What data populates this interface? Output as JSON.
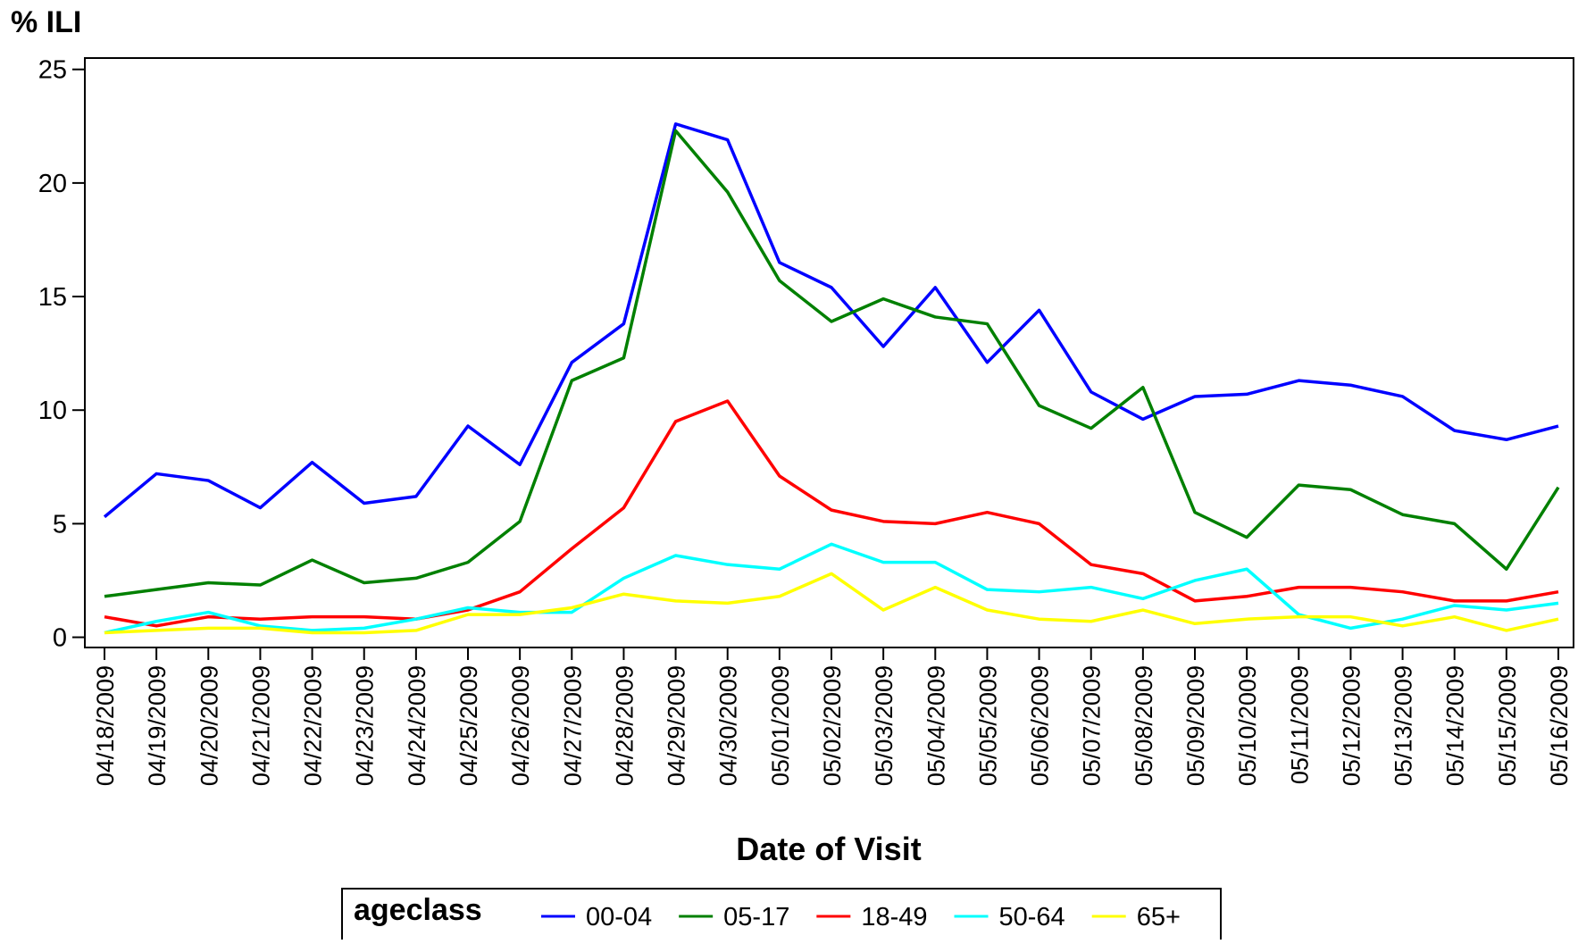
{
  "chart_data": {
    "type": "line",
    "title": "% ILI",
    "x_label": "Date of Visit",
    "legend_title": "ageclass",
    "categories": [
      "04/18/2009",
      "04/19/2009",
      "04/20/2009",
      "04/21/2009",
      "04/22/2009",
      "04/23/2009",
      "04/24/2009",
      "04/25/2009",
      "04/26/2009",
      "04/27/2009",
      "04/28/2009",
      "04/29/2009",
      "04/30/2009",
      "05/01/2009",
      "05/02/2009",
      "05/03/2009",
      "05/04/2009",
      "05/05/2009",
      "05/06/2009",
      "05/07/2009",
      "05/08/2009",
      "05/09/2009",
      "05/10/2009",
      "05/11/2009",
      "05/12/2009",
      "05/13/2009",
      "05/14/2009",
      "05/15/2009",
      "05/16/2009"
    ],
    "series": [
      {
        "name": "00-04",
        "color": "#0000ff",
        "values": [
          5.3,
          7.2,
          6.9,
          5.7,
          7.7,
          5.9,
          6.2,
          9.3,
          7.6,
          12.1,
          13.8,
          22.6,
          21.9,
          16.5,
          15.4,
          12.8,
          15.4,
          12.1,
          14.4,
          10.8,
          9.6,
          10.6,
          10.7,
          11.3,
          11.1,
          10.6,
          9.1,
          8.7,
          9.3
        ]
      },
      {
        "name": "05-17",
        "color": "#008000",
        "values": [
          1.8,
          2.1,
          2.4,
          2.3,
          3.4,
          2.4,
          2.6,
          3.3,
          5.1,
          11.3,
          12.3,
          22.3,
          19.6,
          15.7,
          13.9,
          14.9,
          14.1,
          13.8,
          10.2,
          9.2,
          11.0,
          5.5,
          4.4,
          6.7,
          6.5,
          5.4,
          5.0,
          3.0,
          6.6
        ]
      },
      {
        "name": "18-49",
        "color": "#ff0000",
        "values": [
          0.9,
          0.5,
          0.9,
          0.8,
          0.9,
          0.9,
          0.8,
          1.2,
          2.0,
          3.9,
          5.7,
          9.5,
          10.4,
          7.1,
          5.6,
          5.1,
          5.0,
          5.5,
          5.0,
          3.2,
          2.8,
          1.6,
          1.8,
          2.2,
          2.2,
          2.0,
          1.6,
          1.6,
          2.0
        ]
      },
      {
        "name": "50-64",
        "color": "#00ffff",
        "values": [
          0.2,
          0.7,
          1.1,
          0.5,
          0.3,
          0.4,
          0.8,
          1.3,
          1.1,
          1.1,
          2.6,
          3.6,
          3.2,
          3.0,
          4.1,
          3.3,
          3.3,
          2.1,
          2.0,
          2.2,
          1.7,
          2.5,
          3.0,
          1.0,
          0.4,
          0.8,
          1.4,
          1.2,
          1.5
        ]
      },
      {
        "name": "65+",
        "color": "#ffff00",
        "values": [
          0.2,
          0.3,
          0.4,
          0.4,
          0.2,
          0.2,
          0.3,
          1.0,
          1.0,
          1.3,
          1.9,
          1.6,
          1.5,
          1.8,
          2.8,
          1.2,
          2.2,
          1.2,
          0.8,
          0.7,
          1.2,
          0.6,
          0.8,
          0.9,
          0.9,
          0.5,
          0.9,
          0.3,
          0.8
        ]
      }
    ],
    "ylim": [
      -0.45,
      25.5
    ],
    "yticks": [
      0,
      5,
      10,
      15,
      20,
      25
    ],
    "grid": false
  }
}
